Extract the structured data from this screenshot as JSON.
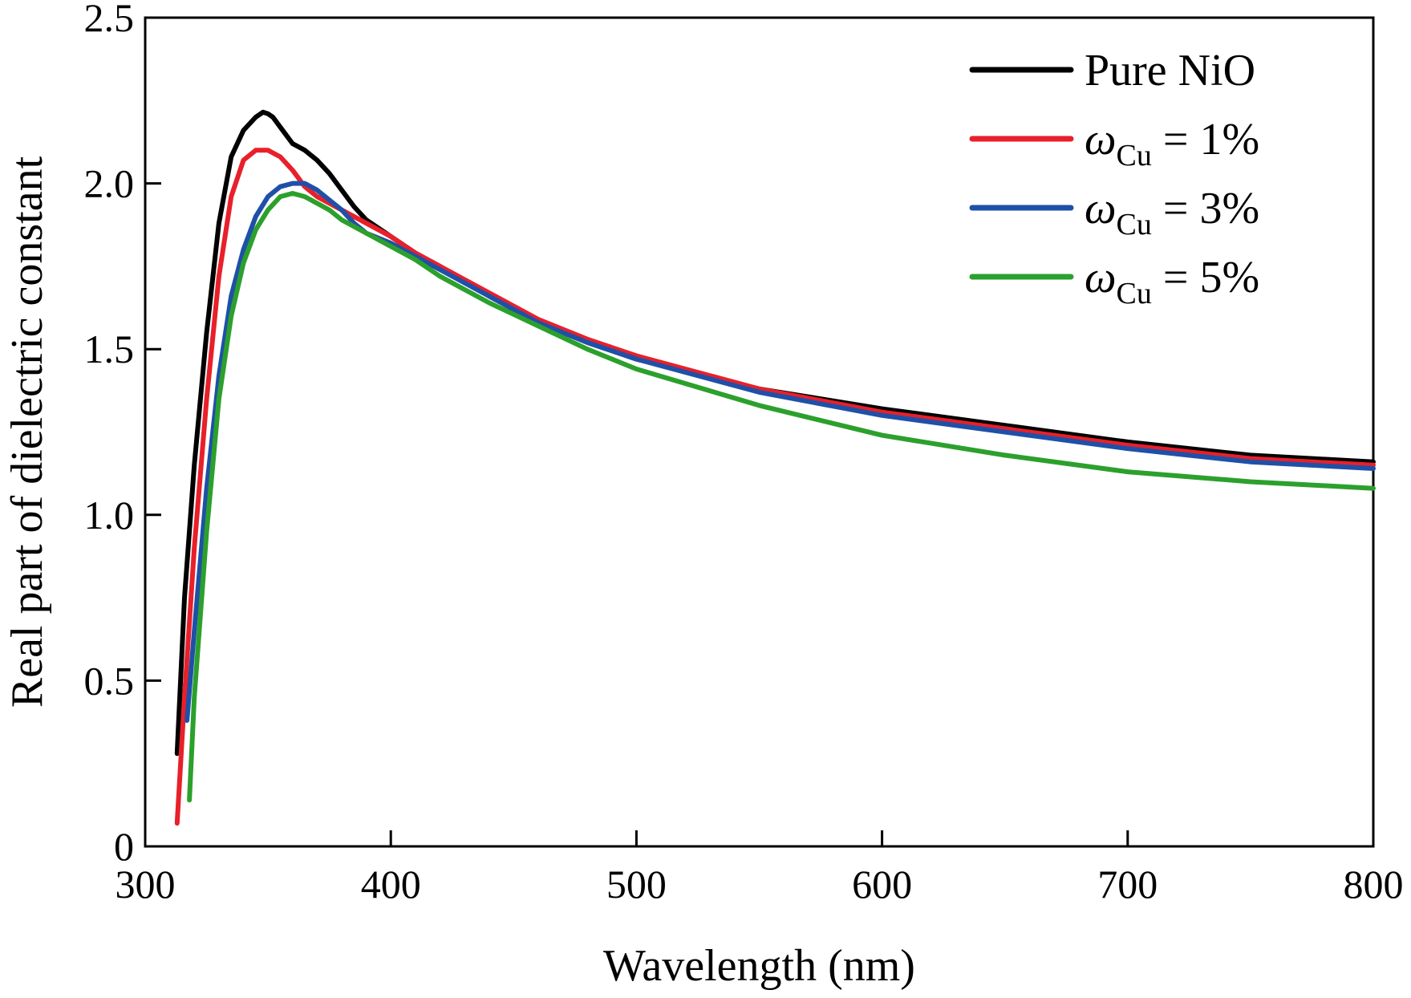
{
  "chart_data": {
    "type": "line",
    "xlabel": "Wavelength (nm)",
    "ylabel": "Real part of dielectric constant",
    "xlim": [
      300,
      800
    ],
    "ylim": [
      0,
      2.5
    ],
    "x_ticks": [
      300,
      400,
      500,
      600,
      700,
      800
    ],
    "x_tick_labels": [
      "300",
      "400",
      "500",
      "600",
      "700",
      "800"
    ],
    "y_ticks": [
      0,
      0.5,
      1.0,
      1.5,
      2.0,
      2.5
    ],
    "y_tick_labels": [
      "0",
      "0.5",
      "1.0",
      "1.5",
      "2.0",
      "2.5"
    ],
    "grid": false,
    "legend_position": "top-right",
    "series": [
      {
        "name": "Pure NiO",
        "legend": {
          "symbol": "",
          "sub": "",
          "rest": "Pure NiO"
        },
        "color": "#000000",
        "x": [
          313,
          316,
          320,
          325,
          330,
          335,
          340,
          345,
          348,
          350,
          352,
          355,
          360,
          365,
          370,
          375,
          380,
          385,
          390,
          400,
          410,
          420,
          440,
          460,
          480,
          500,
          550,
          600,
          650,
          700,
          750,
          800
        ],
        "y": [
          0.28,
          0.75,
          1.15,
          1.55,
          1.88,
          2.08,
          2.16,
          2.2,
          2.215,
          2.21,
          2.2,
          2.17,
          2.12,
          2.1,
          2.07,
          2.03,
          1.98,
          1.93,
          1.89,
          1.84,
          1.79,
          1.75,
          1.66,
          1.58,
          1.52,
          1.47,
          1.38,
          1.32,
          1.27,
          1.22,
          1.18,
          1.16
        ]
      },
      {
        "name": "ωCu = 1%",
        "legend": {
          "symbol": "ω",
          "sub": "Cu",
          "rest": " = 1%"
        },
        "color": "#e8202a",
        "x": [
          313,
          316,
          320,
          325,
          330,
          335,
          340,
          345,
          350,
          355,
          360,
          365,
          370,
          375,
          380,
          390,
          400,
          410,
          420,
          440,
          460,
          480,
          500,
          550,
          600,
          650,
          700,
          750,
          800
        ],
        "y": [
          0.07,
          0.45,
          0.9,
          1.35,
          1.72,
          1.96,
          2.07,
          2.1,
          2.1,
          2.08,
          2.04,
          1.99,
          1.96,
          1.94,
          1.92,
          1.88,
          1.84,
          1.79,
          1.75,
          1.67,
          1.59,
          1.53,
          1.48,
          1.38,
          1.31,
          1.26,
          1.21,
          1.17,
          1.15
        ]
      },
      {
        "name": "ωCu = 3%",
        "legend": {
          "symbol": "ω",
          "sub": "Cu",
          "rest": " = 3%"
        },
        "color": "#1f50a8",
        "x": [
          317,
          320,
          325,
          330,
          335,
          340,
          345,
          350,
          355,
          360,
          365,
          370,
          375,
          380,
          385,
          390,
          400,
          410,
          420,
          440,
          460,
          480,
          500,
          550,
          600,
          650,
          700,
          750,
          800
        ],
        "y": [
          0.38,
          0.65,
          1.08,
          1.42,
          1.66,
          1.8,
          1.9,
          1.96,
          1.99,
          2.0,
          2.0,
          1.98,
          1.95,
          1.92,
          1.88,
          1.85,
          1.82,
          1.78,
          1.74,
          1.66,
          1.58,
          1.52,
          1.47,
          1.37,
          1.3,
          1.25,
          1.2,
          1.16,
          1.14
        ]
      },
      {
        "name": "ωCu = 5%",
        "legend": {
          "symbol": "ω",
          "sub": "Cu",
          "rest": " = 5%"
        },
        "color": "#2ca02c",
        "x": [
          318,
          320,
          325,
          330,
          335,
          340,
          345,
          350,
          355,
          360,
          365,
          370,
          375,
          380,
          390,
          400,
          410,
          420,
          440,
          460,
          480,
          500,
          550,
          600,
          650,
          700,
          750,
          800
        ],
        "y": [
          0.14,
          0.45,
          0.95,
          1.35,
          1.6,
          1.76,
          1.86,
          1.92,
          1.96,
          1.97,
          1.96,
          1.94,
          1.92,
          1.89,
          1.85,
          1.81,
          1.77,
          1.72,
          1.64,
          1.57,
          1.5,
          1.44,
          1.33,
          1.24,
          1.18,
          1.13,
          1.1,
          1.08
        ]
      }
    ]
  }
}
